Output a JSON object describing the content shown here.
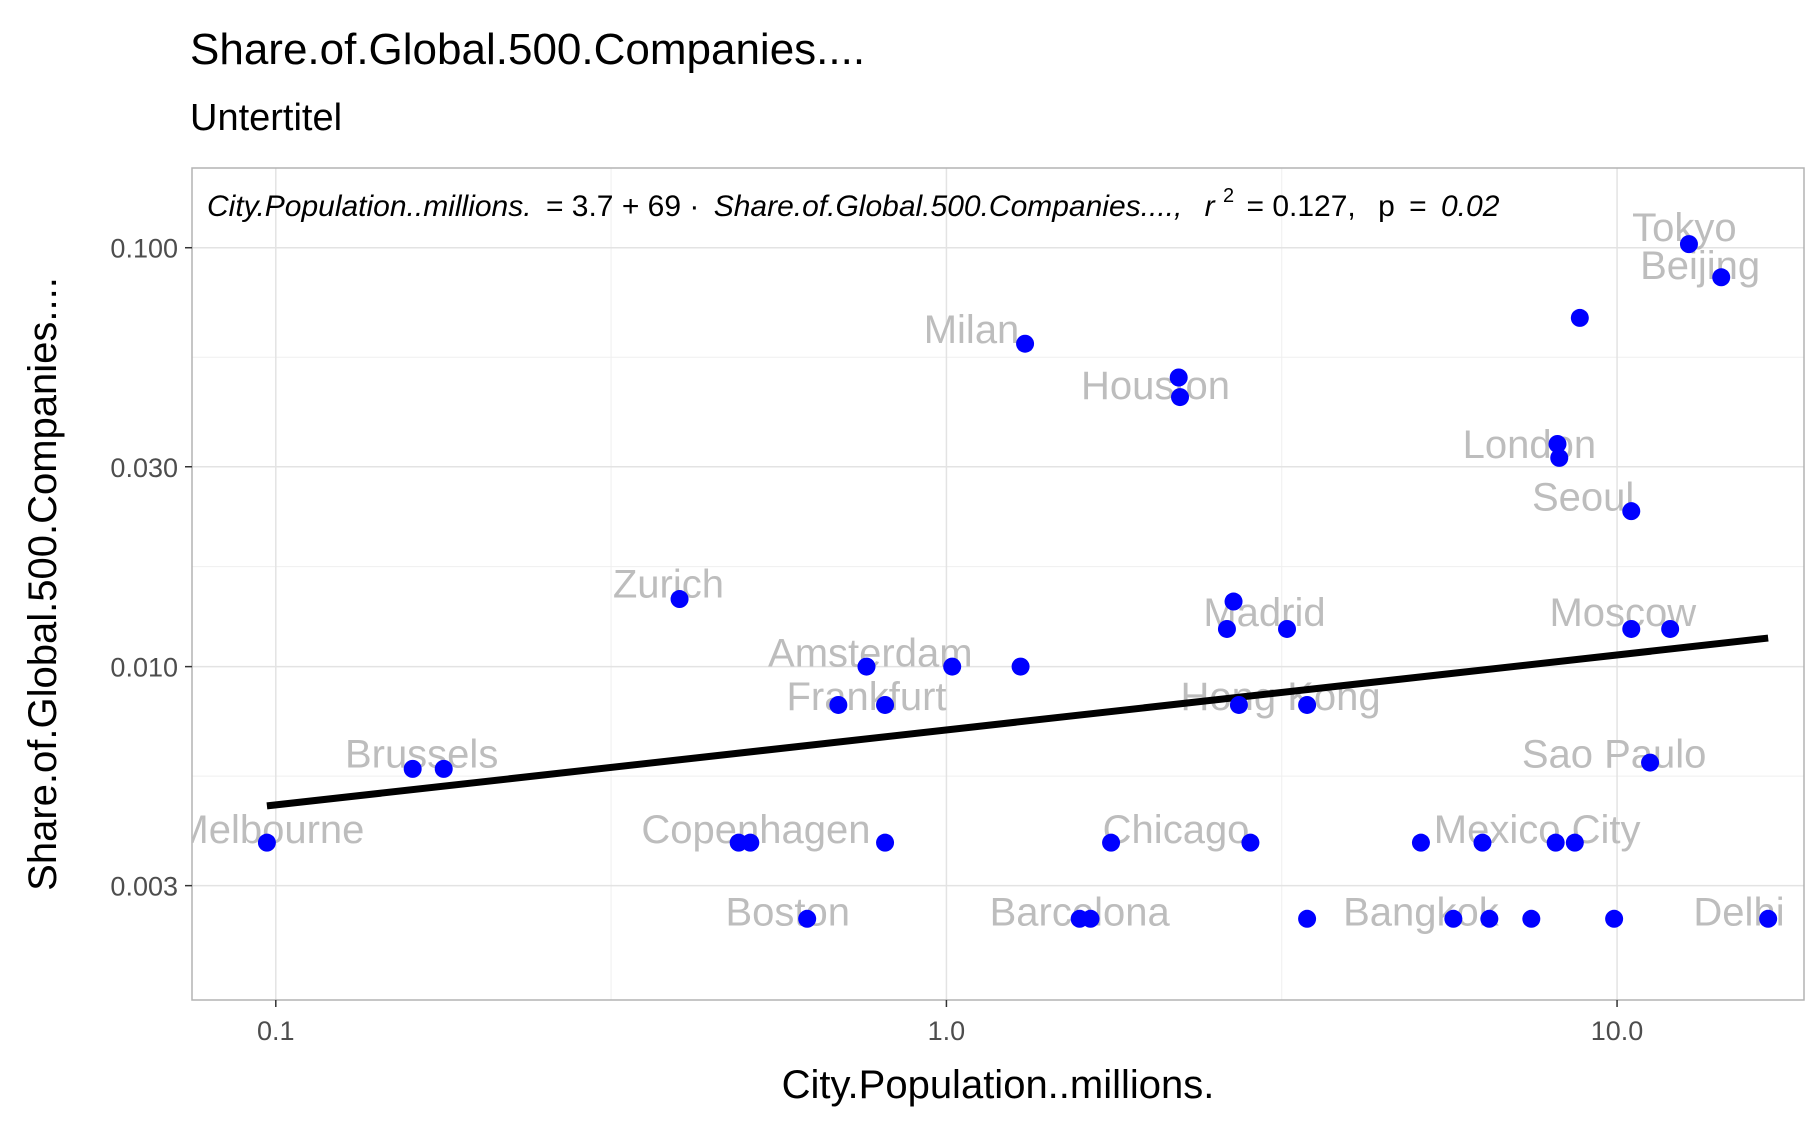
{
  "chart_data": {
    "type": "scatter",
    "title": "Share.of.Global.500.Companies....",
    "subtitle": "Untertitel",
    "xlabel": "City.Population..millions.",
    "ylabel": "Share.of.Global.500.Companies....",
    "x_scale": "log10",
    "y_scale": "log10",
    "xlim": [
      0.075,
      19
    ],
    "ylim": [
      0.0016,
      0.155
    ],
    "x_ticks": [
      0.1,
      1.0,
      10.0
    ],
    "x_tick_labels": [
      "0.1",
      "1.0",
      "10.0"
    ],
    "y_ticks": [
      0.003,
      0.01,
      0.03,
      0.1
    ],
    "y_tick_labels": [
      "0.003",
      "0.010",
      "0.030",
      "0.100"
    ],
    "grid": true,
    "point_color": "#0000ff",
    "regression_line": {
      "color": "#000000",
      "x_from": 0.097,
      "x_to": 16.8,
      "y_from": 0.00465,
      "y_to": 0.0117
    },
    "annotation": {
      "left": "City.Population..millions.",
      "middle": "= 3.7 + 69 · ",
      "right": "Share.of.Global.500.Companies....,",
      "r_sym": "r",
      "r_exp": "2",
      "r_val": "= 0.127,",
      "p_sym": "p",
      "p_eq": "=",
      "p_val": "0.02"
    },
    "points": [
      {
        "x": 0.097,
        "y": 0.0038
      },
      {
        "x": 0.16,
        "y": 0.0057
      },
      {
        "x": 0.178,
        "y": 0.0057
      },
      {
        "x": 0.4,
        "y": 0.0145
      },
      {
        "x": 0.49,
        "y": 0.0038
      },
      {
        "x": 0.51,
        "y": 0.0038
      },
      {
        "x": 0.62,
        "y": 0.0025
      },
      {
        "x": 0.69,
        "y": 0.0081
      },
      {
        "x": 0.76,
        "y": 0.01
      },
      {
        "x": 0.81,
        "y": 0.0081
      },
      {
        "x": 0.81,
        "y": 0.0038
      },
      {
        "x": 1.02,
        "y": 0.01
      },
      {
        "x": 1.29,
        "y": 0.01
      },
      {
        "x": 1.31,
        "y": 0.059
      },
      {
        "x": 1.58,
        "y": 0.0025
      },
      {
        "x": 1.64,
        "y": 0.0025
      },
      {
        "x": 1.76,
        "y": 0.0038
      },
      {
        "x": 2.22,
        "y": 0.049
      },
      {
        "x": 2.23,
        "y": 0.044
      },
      {
        "x": 2.62,
        "y": 0.0123
      },
      {
        "x": 2.68,
        "y": 0.0143
      },
      {
        "x": 2.73,
        "y": 0.0081
      },
      {
        "x": 2.84,
        "y": 0.0038
      },
      {
        "x": 3.22,
        "y": 0.0123
      },
      {
        "x": 3.45,
        "y": 0.0025
      },
      {
        "x": 3.45,
        "y": 0.0081
      },
      {
        "x": 5.1,
        "y": 0.0038
      },
      {
        "x": 5.7,
        "y": 0.0025
      },
      {
        "x": 6.3,
        "y": 0.0038
      },
      {
        "x": 6.45,
        "y": 0.0025
      },
      {
        "x": 7.45,
        "y": 0.0025
      },
      {
        "x": 8.1,
        "y": 0.0038
      },
      {
        "x": 8.15,
        "y": 0.034
      },
      {
        "x": 8.2,
        "y": 0.0315
      },
      {
        "x": 8.65,
        "y": 0.0038
      },
      {
        "x": 8.8,
        "y": 0.068
      },
      {
        "x": 9.9,
        "y": 0.0025
      },
      {
        "x": 10.5,
        "y": 0.0123
      },
      {
        "x": 10.5,
        "y": 0.0235
      },
      {
        "x": 11.2,
        "y": 0.0059
      },
      {
        "x": 12.0,
        "y": 0.0123
      },
      {
        "x": 12.8,
        "y": 0.102
      },
      {
        "x": 14.3,
        "y": 0.085
      },
      {
        "x": 16.8,
        "y": 0.0025
      }
    ],
    "labels": [
      {
        "text": "Tokyo",
        "x": 12.6,
        "y": 0.112
      },
      {
        "text": "Beijing",
        "x": 13.3,
        "y": 0.091
      },
      {
        "text": "Milan",
        "x": 1.09,
        "y": 0.064
      },
      {
        "text": "Houston",
        "x": 2.05,
        "y": 0.047
      },
      {
        "text": "London",
        "x": 7.4,
        "y": 0.034
      },
      {
        "text": "Seoul",
        "x": 8.9,
        "y": 0.0255
      },
      {
        "text": "Zurich",
        "x": 0.385,
        "y": 0.0158
      },
      {
        "text": "Madrid",
        "x": 2.98,
        "y": 0.0135
      },
      {
        "text": "Moscow",
        "x": 10.2,
        "y": 0.0135
      },
      {
        "text": "Amsterdam",
        "x": 0.77,
        "y": 0.0108
      },
      {
        "text": "Frankfurt",
        "x": 0.76,
        "y": 0.0085
      },
      {
        "text": "Hong Kong",
        "x": 3.15,
        "y": 0.0085
      },
      {
        "text": "Brussels",
        "x": 0.165,
        "y": 0.0062
      },
      {
        "text": "Sao Paulo",
        "x": 9.9,
        "y": 0.0062
      },
      {
        "text": "Melbourne",
        "x": 0.098,
        "y": 0.0041
      },
      {
        "text": "Copenhagen",
        "x": 0.52,
        "y": 0.0041
      },
      {
        "text": "Chicago",
        "x": 2.2,
        "y": 0.0041
      },
      {
        "text": "Mexico City",
        "x": 7.6,
        "y": 0.0041
      },
      {
        "text": "Boston",
        "x": 0.58,
        "y": 0.0026
      },
      {
        "text": "Barcelona",
        "x": 1.58,
        "y": 0.0026
      },
      {
        "text": "Bangkok",
        "x": 5.1,
        "y": 0.0026
      },
      {
        "text": "Delhi",
        "x": 15.2,
        "y": 0.0026
      }
    ]
  }
}
